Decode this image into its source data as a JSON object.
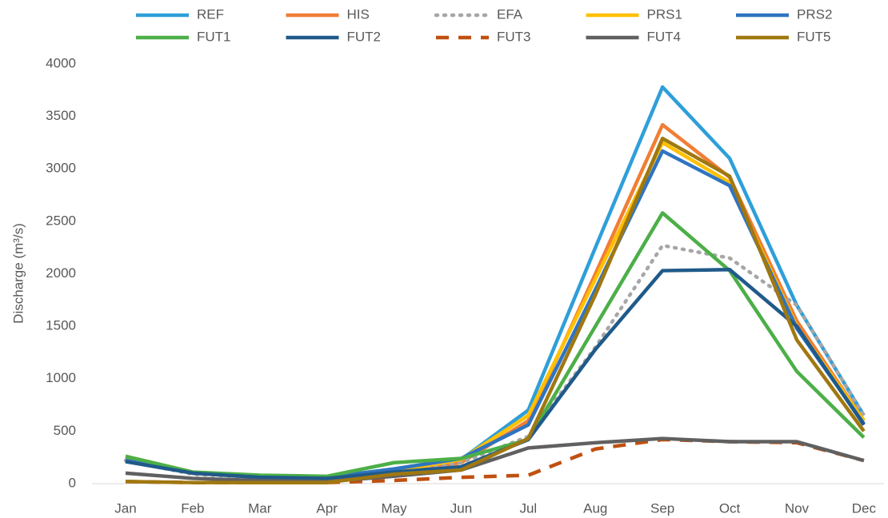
{
  "chart_data": {
    "type": "line",
    "y_label": "Discharge (m³/s)",
    "categories": [
      "Jan",
      "Feb",
      "Mar",
      "Apr",
      "May",
      "Jun",
      "Jul",
      "Aug",
      "Sep",
      "Oct",
      "Nov",
      "Dec"
    ],
    "ylim": [
      0,
      4000
    ],
    "yticks": [
      0,
      500,
      1000,
      1500,
      2000,
      2500,
      3000,
      3500,
      4000
    ],
    "grid": false,
    "legend": "top",
    "series": [
      {
        "name": "REF",
        "color": "#2e9fd9",
        "style": "solid",
        "values": [
          250,
          100,
          70,
          60,
          120,
          230,
          700,
          2250,
          3780,
          3100,
          1700,
          650
        ]
      },
      {
        "name": "HIS",
        "color": "#f07e35",
        "style": "solid",
        "values": [
          230,
          100,
          60,
          50,
          100,
          200,
          600,
          2000,
          3420,
          2920,
          1550,
          600
        ]
      },
      {
        "name": "EFA",
        "color": "#a6a6a6",
        "style": "dotted",
        "values": [
          220,
          90,
          60,
          50,
          100,
          200,
          450,
          1300,
          2270,
          2150,
          1700,
          650
        ]
      },
      {
        "name": "PRS1",
        "color": "#ffc000",
        "style": "solid",
        "values": [
          260,
          110,
          70,
          60,
          120,
          230,
          650,
          1950,
          3250,
          2870,
          1500,
          600
        ]
      },
      {
        "name": "PRS2",
        "color": "#2f74c0",
        "style": "solid",
        "values": [
          220,
          110,
          70,
          60,
          140,
          240,
          560,
          1850,
          3170,
          2840,
          1480,
          570
        ]
      },
      {
        "name": "FUT1",
        "color": "#4caf48",
        "style": "solid",
        "values": [
          260,
          110,
          80,
          70,
          200,
          240,
          420,
          1500,
          2580,
          2030,
          1070,
          440
        ]
      },
      {
        "name": "FUT2",
        "color": "#1f5a8a",
        "style": "solid",
        "values": [
          210,
          100,
          60,
          50,
          110,
          160,
          420,
          1280,
          2030,
          2040,
          1500,
          560
        ]
      },
      {
        "name": "FUT3",
        "color": "#c05010",
        "style": "dashed",
        "values": [
          20,
          10,
          10,
          10,
          30,
          60,
          80,
          330,
          420,
          400,
          390,
          220
        ]
      },
      {
        "name": "FUT4",
        "color": "#606060",
        "style": "solid",
        "values": [
          100,
          50,
          30,
          20,
          70,
          130,
          340,
          390,
          430,
          400,
          400,
          220
        ]
      },
      {
        "name": "FUT5",
        "color": "#a07810",
        "style": "solid",
        "values": [
          20,
          10,
          10,
          10,
          90,
          130,
          430,
          1800,
          3290,
          2930,
          1370,
          500
        ]
      }
    ]
  }
}
